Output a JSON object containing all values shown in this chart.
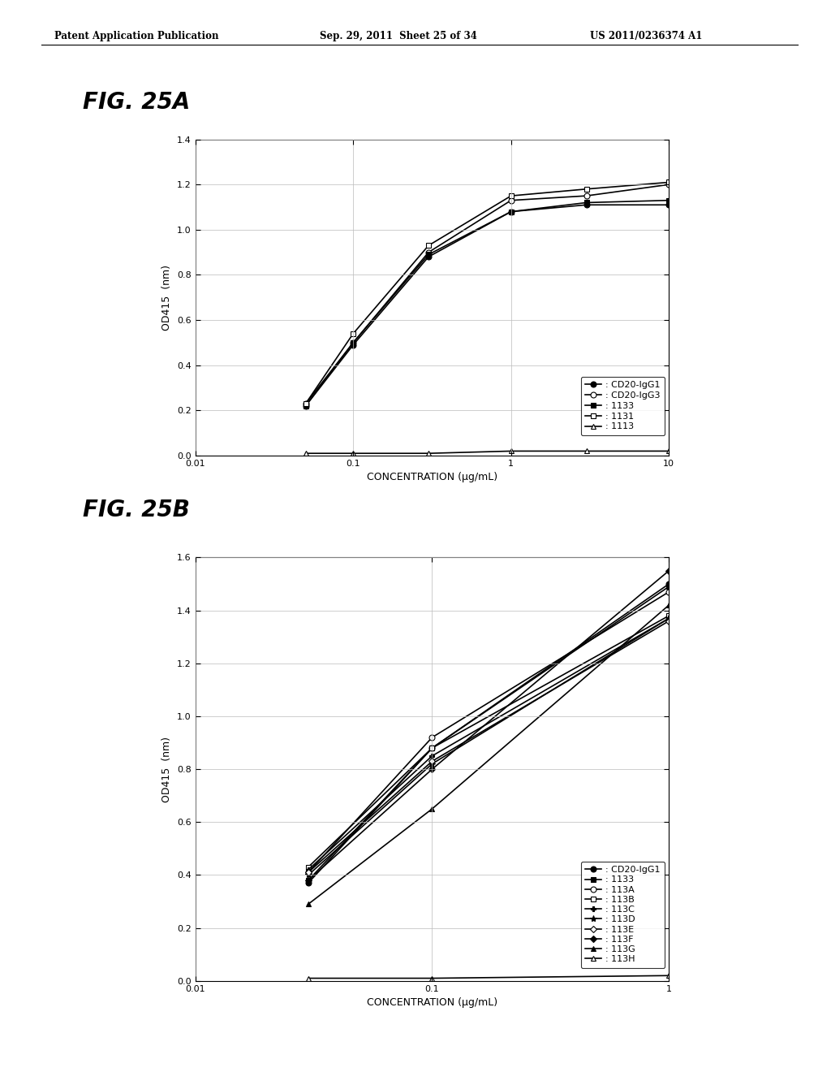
{
  "header_left": "Patent Application Publication",
  "header_mid": "Sep. 29, 2011  Sheet 25 of 34",
  "header_right": "US 2011/0236374 A1",
  "fig_a_title": "FIG. 25A",
  "fig_b_title": "FIG. 25B",
  "fig_a": {
    "xlabel": "CONCENTRATION (μg/mL)",
    "ylabel": "OD415  (nm)",
    "ylim": [
      0,
      1.4
    ],
    "yticks": [
      0,
      0.2,
      0.4,
      0.6,
      0.8,
      1.0,
      1.2,
      1.4
    ],
    "xlim": [
      0.01,
      10
    ],
    "series": [
      {
        "label": ": CD20-IgG1",
        "x": [
          0.05,
          0.1,
          0.3,
          1,
          3,
          10
        ],
        "y": [
          0.22,
          0.49,
          0.88,
          1.08,
          1.11,
          1.11
        ],
        "marker": "o",
        "markersize": 5,
        "fillstyle": "full",
        "color": "black",
        "linestyle": "-",
        "linewidth": 1.2
      },
      {
        "label": ": CD20-IgG3",
        "x": [
          0.05,
          0.1,
          0.3,
          1,
          3,
          10
        ],
        "y": [
          0.23,
          0.5,
          0.9,
          1.13,
          1.15,
          1.2
        ],
        "marker": "o",
        "markersize": 5,
        "fillstyle": "none",
        "color": "black",
        "linestyle": "-",
        "linewidth": 1.2
      },
      {
        "label": ": 1133",
        "x": [
          0.05,
          0.1,
          0.3,
          1,
          3,
          10
        ],
        "y": [
          0.22,
          0.5,
          0.89,
          1.08,
          1.12,
          1.13
        ],
        "marker": "s",
        "markersize": 5,
        "fillstyle": "full",
        "color": "black",
        "linestyle": "-",
        "linewidth": 1.2
      },
      {
        "label": ": 1131",
        "x": [
          0.05,
          0.1,
          0.3,
          1,
          3,
          10
        ],
        "y": [
          0.23,
          0.54,
          0.93,
          1.15,
          1.18,
          1.21
        ],
        "marker": "s",
        "markersize": 5,
        "fillstyle": "none",
        "color": "black",
        "linestyle": "-",
        "linewidth": 1.2
      },
      {
        "label": ": 1113",
        "x": [
          0.05,
          0.1,
          0.3,
          1,
          3,
          10
        ],
        "y": [
          0.01,
          0.01,
          0.01,
          0.02,
          0.02,
          0.02
        ],
        "marker": "^",
        "markersize": 5,
        "fillstyle": "none",
        "color": "black",
        "linestyle": "-",
        "linewidth": 1.2
      }
    ]
  },
  "fig_b": {
    "xlabel": "CONCENTRATION (μg/mL)",
    "ylabel": "OD415  (nm)",
    "ylim": [
      0,
      1.6
    ],
    "yticks": [
      0,
      0.2,
      0.4,
      0.6,
      0.8,
      1.0,
      1.2,
      1.4,
      1.6
    ],
    "xlim": [
      0.01,
      1
    ],
    "series": [
      {
        "label": ": CD20-IgG1",
        "x": [
          0.03,
          0.1,
          1
        ],
        "y": [
          0.37,
          0.88,
          1.5
        ],
        "marker": "o",
        "markersize": 5,
        "fillstyle": "full",
        "color": "black",
        "linestyle": "-",
        "linewidth": 1.2
      },
      {
        "label": ": 1133",
        "x": [
          0.03,
          0.1,
          1
        ],
        "y": [
          0.38,
          0.88,
          1.49
        ],
        "marker": "s",
        "markersize": 5,
        "fillstyle": "full",
        "color": "black",
        "linestyle": "-",
        "linewidth": 1.2
      },
      {
        "label": ": 113A",
        "x": [
          0.03,
          0.1,
          1
        ],
        "y": [
          0.41,
          0.92,
          1.47
        ],
        "marker": "o",
        "markersize": 5,
        "fillstyle": "none",
        "color": "black",
        "linestyle": "-",
        "linewidth": 1.2
      },
      {
        "label": ": 113B",
        "x": [
          0.03,
          0.1,
          1
        ],
        "y": [
          0.43,
          0.88,
          1.38
        ],
        "marker": "s",
        "markersize": 5,
        "fillstyle": "none",
        "color": "black",
        "linestyle": "-",
        "linewidth": 1.2
      },
      {
        "label": ": 113C",
        "x": [
          0.03,
          0.1,
          1
        ],
        "y": [
          0.42,
          0.85,
          1.37
        ],
        "marker": "P",
        "markersize": 5,
        "fillstyle": "full",
        "color": "black",
        "linestyle": "-",
        "linewidth": 1.2
      },
      {
        "label": ": 113D",
        "x": [
          0.03,
          0.1,
          1
        ],
        "y": [
          0.4,
          0.82,
          1.37
        ],
        "marker": "*",
        "markersize": 6,
        "fillstyle": "full",
        "color": "black",
        "linestyle": "-",
        "linewidth": 1.2
      },
      {
        "label": ": 113E",
        "x": [
          0.03,
          0.1,
          1
        ],
        "y": [
          0.41,
          0.83,
          1.36
        ],
        "marker": "D",
        "markersize": 4,
        "fillstyle": "none",
        "color": "black",
        "linestyle": "-",
        "linewidth": 1.2
      },
      {
        "label": ": 113F",
        "x": [
          0.03,
          0.1,
          1
        ],
        "y": [
          0.38,
          0.8,
          1.55
        ],
        "marker": "D",
        "markersize": 4,
        "fillstyle": "full",
        "color": "black",
        "linestyle": "-",
        "linewidth": 1.2
      },
      {
        "label": ": 113G",
        "x": [
          0.03,
          0.1,
          1
        ],
        "y": [
          0.29,
          0.65,
          1.42
        ],
        "marker": "^",
        "markersize": 5,
        "fillstyle": "full",
        "color": "black",
        "linestyle": "-",
        "linewidth": 1.2
      },
      {
        "label": ": 113H",
        "x": [
          0.03,
          0.1,
          1
        ],
        "y": [
          0.01,
          0.01,
          0.02
        ],
        "marker": "^",
        "markersize": 5,
        "fillstyle": "none",
        "color": "black",
        "linestyle": "-",
        "linewidth": 1.2
      }
    ]
  },
  "background_color": "#ffffff"
}
